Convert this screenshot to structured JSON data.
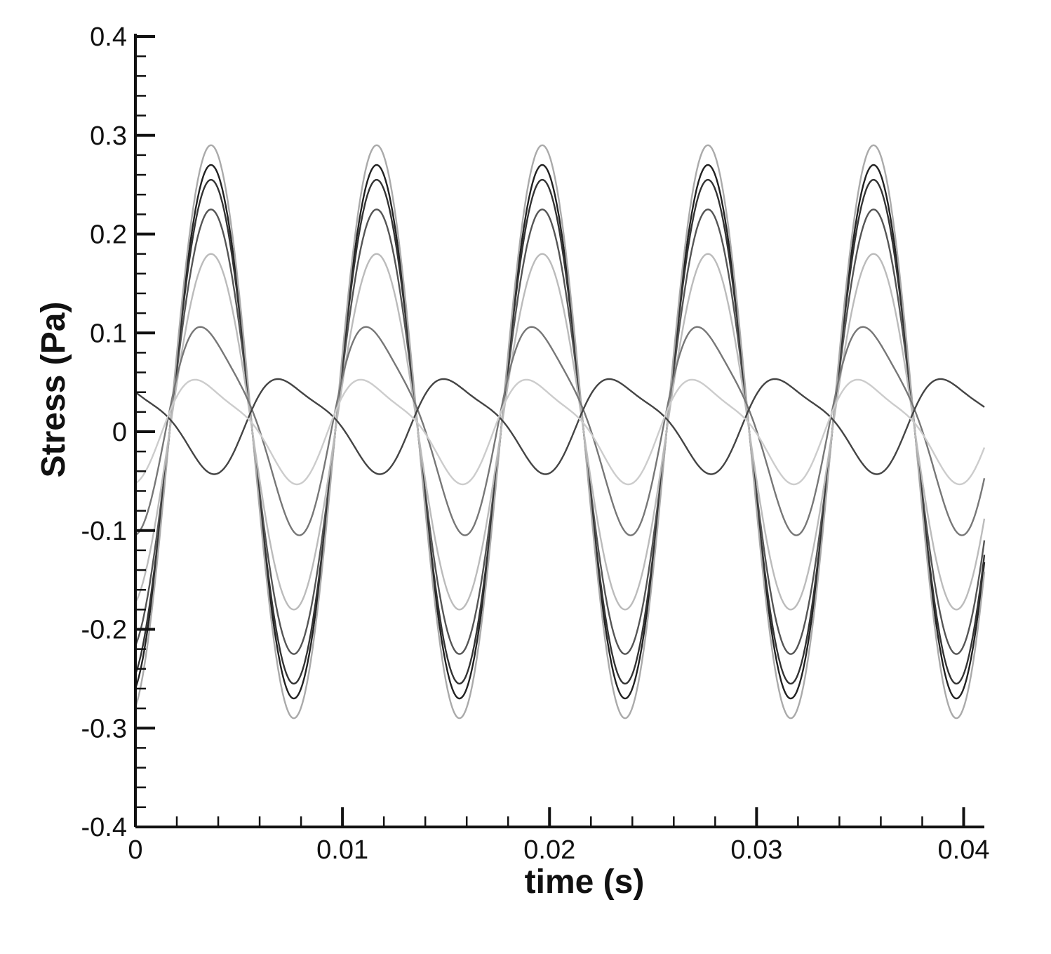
{
  "chart_data": {
    "type": "line",
    "title": "",
    "xlabel": "time (s)",
    "ylabel": "Stress (Pa)",
    "xlim": [
      0,
      0.041
    ],
    "ylim": [
      -0.4,
      0.4
    ],
    "x_ticks": [
      0,
      0.01,
      0.02,
      0.03,
      0.04
    ],
    "x_tick_labels": [
      "0",
      "0.01",
      "0.02",
      "0.03",
      "0.04"
    ],
    "y_ticks": [
      0.4,
      0.3,
      0.2,
      0.1,
      0,
      -0.1,
      -0.2,
      -0.3,
      -0.4
    ],
    "y_tick_labels": [
      "0.4",
      "0.3",
      "0.2",
      "0.1",
      "0",
      "-0.1",
      "-0.2",
      "-0.3",
      "-0.4"
    ],
    "grid": false,
    "legend": "none",
    "oscillation_period_s": 0.008,
    "series": [
      {
        "color": "#222222",
        "amplitude": 0.27,
        "phase_s": 0.00165,
        "mean": 0.0,
        "wobble": 0.0
      },
      {
        "color": "#555555",
        "amplitude": 0.225,
        "phase_s": 0.00165,
        "mean": 0.0,
        "wobble": 0.0
      },
      {
        "color": "#333333",
        "amplitude": 0.255,
        "phase_s": 0.00165,
        "mean": 0.0,
        "wobble": 0.0
      },
      {
        "color": "#aaaaaa",
        "amplitude": 0.29,
        "phase_s": 0.00165,
        "mean": 0.0,
        "wobble": 0.0
      },
      {
        "color": "#bbbbbb",
        "amplitude": 0.18,
        "phase_s": 0.00165,
        "mean": 0.0,
        "wobble": 0.0
      },
      {
        "color": "#777777",
        "amplitude": 0.11,
        "phase_s": 0.00165,
        "mean": 0.01,
        "wobble": 0.2
      },
      {
        "color": "#444444",
        "amplitude": 0.05,
        "phase_s": 0.0055,
        "mean": 0.01,
        "wobble": 0.25
      },
      {
        "color": "#cccccc",
        "amplitude": 0.055,
        "phase_s": 0.0015,
        "mean": 0.005,
        "wobble": 0.25
      }
    ]
  }
}
